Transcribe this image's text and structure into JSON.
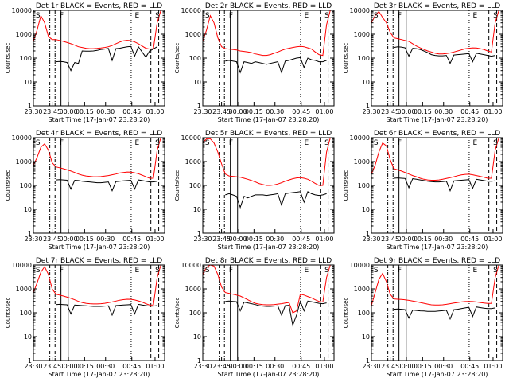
{
  "chart_data": {
    "type": "line",
    "colors": {
      "events": "#000000",
      "lld": "#ff0000",
      "frame": "#000000",
      "background": "#ffffff"
    },
    "y_axis": {
      "scale": "log",
      "ylim": [
        1,
        10000
      ],
      "tick_labels": [
        "1",
        "10",
        "100",
        "1000",
        "10000"
      ],
      "ylabel": "Counts/sec"
    },
    "x_axis": {
      "tick_labels": [
        "23:30",
        "23:45",
        "00:00",
        "00:15",
        "00:30",
        "00:45",
        "01:00"
      ],
      "xlabel": "Start Time (17-Jan-07 23:28:20)"
    },
    "markers": [
      "S",
      "F",
      "E",
      "S"
    ],
    "panels": [
      {
        "title": "Det 1r BLACK = Events, RED = LLD",
        "lld_values": [
          500,
          1500,
          6000,
          3000,
          800,
          600,
          600,
          550,
          500,
          450,
          400,
          350,
          300,
          280,
          260,
          250,
          250,
          255,
          265,
          280,
          300,
          340,
          400,
          470,
          530,
          560,
          540,
          480,
          400,
          320,
          260,
          240,
          250,
          3000,
          12000,
          12000
        ],
        "event_values": [
          null,
          null,
          null,
          null,
          null,
          null,
          70,
          72,
          70,
          65,
          30,
          65,
          60,
          200,
          195,
          195,
          200,
          210,
          230,
          240,
          255,
          80,
          250,
          260,
          280,
          300,
          310,
          120,
          300,
          180,
          110,
          200,
          240,
          300,
          null,
          null
        ]
      },
      {
        "title": "Det 2r BLACK = Events, RED = LLD",
        "lld_values": [
          500,
          1500,
          6000,
          3000,
          700,
          300,
          250,
          240,
          230,
          220,
          200,
          190,
          180,
          170,
          150,
          140,
          130,
          130,
          140,
          160,
          180,
          210,
          240,
          260,
          280,
          300,
          310,
          300,
          270,
          240,
          180,
          140,
          130,
          2500,
          12000,
          12000
        ],
        "event_values": [
          null,
          null,
          null,
          null,
          null,
          null,
          75,
          80,
          75,
          70,
          25,
          70,
          65,
          60,
          70,
          65,
          60,
          55,
          60,
          65,
          70,
          25,
          75,
          80,
          90,
          100,
          105,
          40,
          100,
          85,
          80,
          70,
          70,
          80,
          null,
          null
        ]
      },
      {
        "title": "Det 3r BLACK = Events, RED = LLD",
        "lld_values": [
          3000,
          6000,
          9000,
          5000,
          3000,
          1200,
          700,
          650,
          600,
          550,
          500,
          400,
          320,
          270,
          230,
          200,
          180,
          160,
          150,
          150,
          155,
          165,
          180,
          200,
          220,
          245,
          260,
          270,
          265,
          250,
          230,
          200,
          180,
          3000,
          12000,
          12000
        ],
        "event_values": [
          null,
          null,
          null,
          null,
          null,
          null,
          280,
          300,
          290,
          270,
          120,
          260,
          250,
          230,
          200,
          170,
          140,
          130,
          125,
          125,
          130,
          60,
          135,
          140,
          145,
          150,
          155,
          70,
          160,
          150,
          140,
          130,
          120,
          130,
          null,
          null
        ]
      },
      {
        "title": "Det 4r BLACK = Events, RED = LLD",
        "lld_values": [
          700,
          1500,
          4000,
          5500,
          3000,
          900,
          600,
          550,
          500,
          450,
          400,
          350,
          300,
          270,
          250,
          240,
          230,
          230,
          235,
          245,
          260,
          280,
          300,
          330,
          350,
          365,
          360,
          340,
          310,
          270,
          230,
          200,
          200,
          3000,
          12000,
          12000
        ],
        "event_values": [
          null,
          null,
          null,
          null,
          null,
          null,
          170,
          175,
          170,
          165,
          70,
          165,
          160,
          150,
          145,
          140,
          135,
          130,
          130,
          135,
          140,
          60,
          145,
          150,
          155,
          160,
          165,
          70,
          170,
          160,
          150,
          140,
          140,
          150,
          null,
          null
        ]
      },
      {
        "title": "Det 5r BLACK = Events, RED = LLD",
        "lld_values": [
          6000,
          9000,
          9000,
          6000,
          2500,
          800,
          300,
          250,
          240,
          230,
          220,
          200,
          180,
          160,
          140,
          120,
          110,
          100,
          100,
          105,
          115,
          130,
          150,
          170,
          190,
          205,
          210,
          200,
          180,
          150,
          120,
          100,
          100,
          2500,
          12000,
          12000
        ],
        "event_values": [
          null,
          null,
          null,
          null,
          null,
          null,
          40,
          45,
          40,
          35,
          12,
          35,
          30,
          35,
          40,
          40,
          40,
          38,
          40,
          42,
          45,
          15,
          45,
          48,
          50,
          52,
          55,
          20,
          55,
          45,
          40,
          38,
          40,
          45,
          null,
          null
        ]
      },
      {
        "title": "Det 6r BLACK = Events, RED = LLD",
        "lld_values": [
          300,
          700,
          2500,
          6000,
          4500,
          1200,
          500,
          450,
          400,
          350,
          300,
          260,
          230,
          200,
          180,
          170,
          165,
          165,
          170,
          180,
          195,
          210,
          230,
          255,
          275,
          290,
          295,
          280,
          260,
          240,
          220,
          200,
          200,
          3000,
          12000,
          12000
        ],
        "event_values": [
          null,
          null,
          null,
          null,
          null,
          null,
          200,
          205,
          200,
          195,
          80,
          190,
          180,
          170,
          160,
          150,
          145,
          140,
          140,
          145,
          150,
          60,
          155,
          160,
          165,
          170,
          175,
          75,
          180,
          170,
          160,
          150,
          150,
          155,
          null,
          null
        ]
      },
      {
        "title": "Det 7r BLACK = Events, RED = LLD",
        "lld_values": [
          700,
          1800,
          5000,
          8500,
          4000,
          1000,
          600,
          550,
          500,
          450,
          400,
          350,
          300,
          270,
          250,
          240,
          235,
          235,
          240,
          250,
          265,
          285,
          310,
          335,
          355,
          370,
          365,
          345,
          315,
          280,
          240,
          210,
          210,
          3000,
          12000,
          12000
        ],
        "event_values": [
          null,
          null,
          null,
          null,
          null,
          null,
          220,
          225,
          220,
          215,
          90,
          210,
          205,
          200,
          195,
          190,
          185,
          185,
          185,
          190,
          195,
          80,
          200,
          205,
          210,
          215,
          220,
          90,
          225,
          210,
          200,
          190,
          190,
          200,
          null,
          null
        ]
      },
      {
        "title": "Det 8r BLACK = Events, RED = LLD",
        "lld_values": [
          4000,
          8000,
          12000,
          9000,
          4000,
          1200,
          700,
          650,
          600,
          550,
          500,
          420,
          350,
          290,
          250,
          230,
          220,
          215,
          215,
          220,
          230,
          240,
          255,
          270,
          100,
          120,
          600,
          550,
          480,
          420,
          350,
          300,
          280,
          3000,
          12000,
          12000
        ],
        "event_values": [
          null,
          null,
          null,
          null,
          null,
          null,
          300,
          310,
          300,
          290,
          120,
          280,
          260,
          240,
          220,
          200,
          190,
          185,
          185,
          190,
          195,
          80,
          200,
          205,
          30,
          80,
          300,
          120,
          310,
          290,
          270,
          250,
          240,
          260,
          null,
          null
        ]
      },
      {
        "title": "Det 9r BLACK = Events, RED = LLD",
        "lld_values": [
          200,
          700,
          2500,
          4500,
          2000,
          600,
          380,
          370,
          360,
          350,
          330,
          310,
          290,
          270,
          250,
          230,
          215,
          210,
          210,
          215,
          225,
          240,
          255,
          270,
          285,
          295,
          300,
          295,
          285,
          270,
          255,
          245,
          245,
          3000,
          12000,
          12000
        ],
        "event_values": [
          null,
          null,
          null,
          null,
          null,
          null,
          140,
          145,
          140,
          135,
          60,
          130,
          125,
          120,
          118,
          115,
          115,
          115,
          118,
          122,
          128,
          55,
          135,
          140,
          150,
          160,
          170,
          70,
          175,
          165,
          155,
          150,
          150,
          160,
          null,
          null
        ]
      }
    ]
  }
}
